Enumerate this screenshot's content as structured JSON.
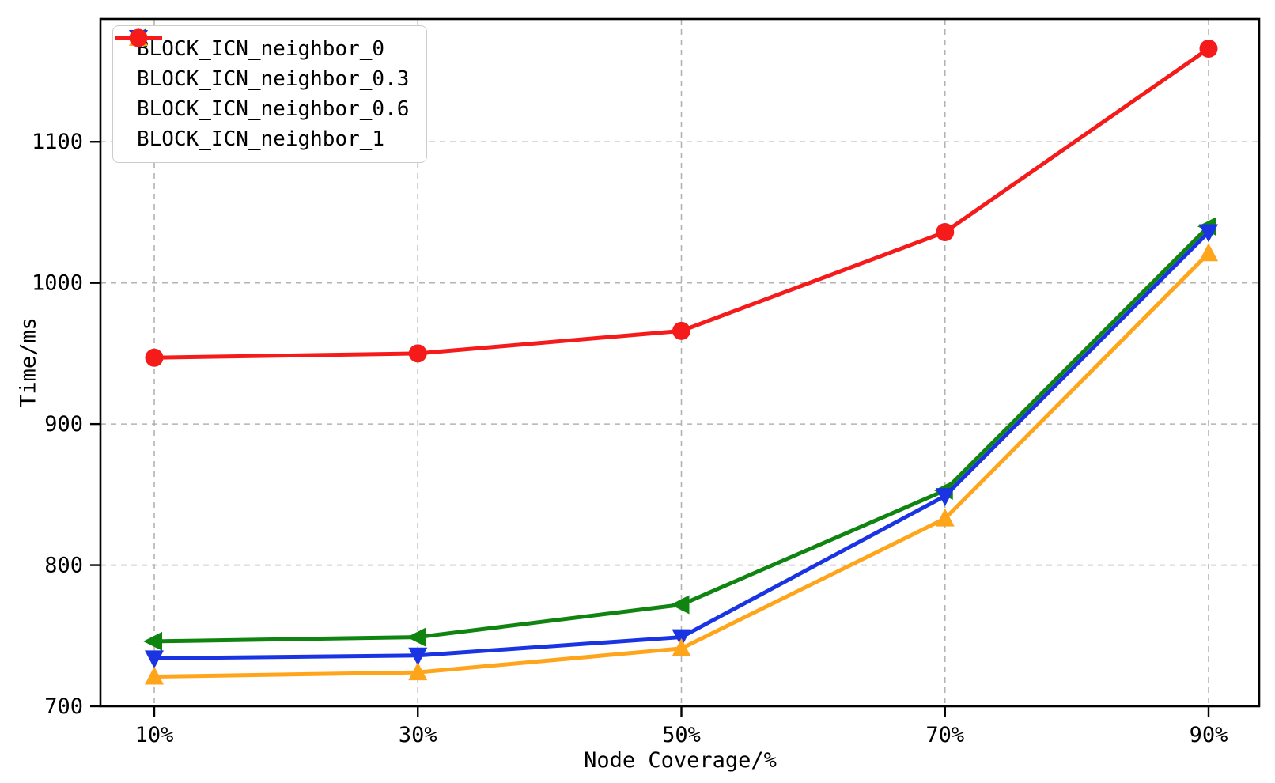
{
  "chart_data": {
    "type": "line",
    "title": "",
    "xlabel": "Node Coverage/%",
    "ylabel": "Time/ms",
    "categories": [
      "10%",
      "30%",
      "50%",
      "70%",
      "90%"
    ],
    "yticks": [
      700,
      800,
      900,
      1000,
      1100
    ],
    "ylim": [
      700,
      1187
    ],
    "grid": "dashed, both axes",
    "legend_position": "upper-left",
    "axis_color": "#000000",
    "grid_color": "#b3b3b3",
    "series": [
      {
        "name": "BLOCK_ICN_neighbor_0",
        "color": "#108410",
        "marker": "triangle-left",
        "values": [
          746,
          749,
          772,
          853,
          1040
        ]
      },
      {
        "name": "BLOCK_ICN_neighbor_0.3",
        "color": "#1a34e3",
        "marker": "triangle-down",
        "values": [
          734,
          736,
          749,
          849,
          1036
        ]
      },
      {
        "name": "BLOCK_ICN_neighbor_0.6",
        "color": "#ffa51c",
        "marker": "triangle-up",
        "values": [
          721,
          724,
          741,
          833,
          1021
        ]
      },
      {
        "name": "BLOCK_ICN_neighbor_1",
        "color": "#f51b1b",
        "marker": "circle",
        "values": [
          947,
          950,
          966,
          1036,
          1166
        ]
      }
    ]
  }
}
